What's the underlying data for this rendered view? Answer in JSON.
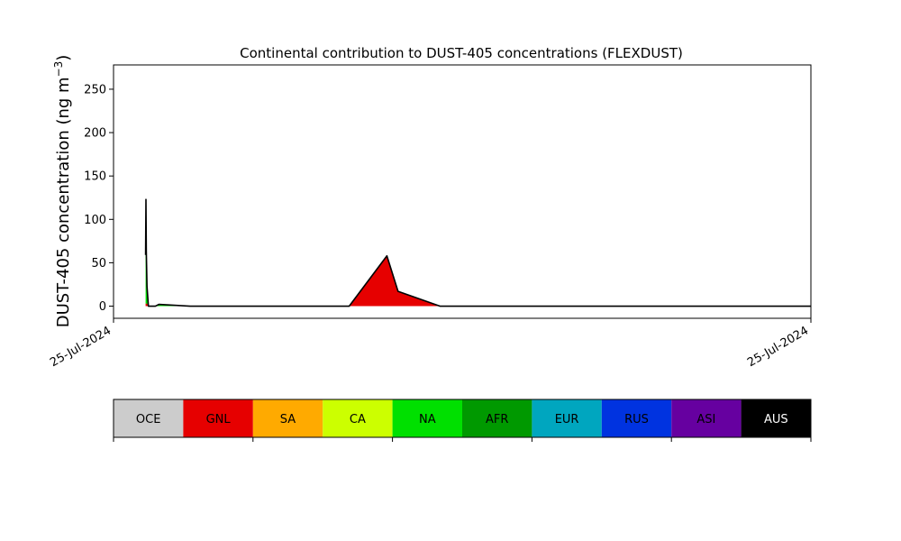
{
  "chart_data": {
    "type": "area",
    "title": "Continental contribution to DUST-405 concentrations (FLEXDUST)",
    "ylabel": "DUST-405 concentration (ng m",
    "ylabel_sup": "−3",
    "ylabel_close": ")",
    "ylim": [
      -14,
      278
    ],
    "yticks": [
      0,
      50,
      100,
      150,
      200,
      250
    ],
    "xlim": [
      0,
      1000
    ],
    "xtick_labels": [
      "25-Jul-2024",
      "25-Jul-2024"
    ],
    "grid": false,
    "x": [
      46,
      46.5,
      47,
      48,
      50,
      54,
      60,
      65,
      110,
      115,
      150,
      170,
      190,
      227,
      242,
      253,
      258,
      265,
      271,
      278,
      282,
      287,
      292,
      297,
      328,
      337,
      338,
      392,
      408,
      468,
      484,
      512,
      527,
      530,
      532,
      547,
      554,
      561,
      567,
      578,
      581,
      583,
      584,
      588,
      592,
      593,
      595,
      599,
      603,
      611,
      620,
      690,
      708,
      739,
      743,
      746,
      750,
      751,
      754,
      757,
      762,
      768,
      772,
      777,
      783,
      802,
      807,
      813,
      819,
      874,
      883,
      1000
    ],
    "series": [
      {
        "name": "OCE",
        "color": "#cccccc",
        "values": [
          0,
          0,
          0,
          0,
          0,
          0,
          0,
          0,
          0,
          0,
          0,
          0,
          0,
          0,
          0,
          0,
          0,
          0,
          0,
          0,
          0,
          0,
          0,
          0,
          0,
          0,
          0,
          0,
          0,
          0,
          0,
          0,
          0,
          0,
          0,
          0,
          0,
          0,
          0,
          0,
          0,
          0,
          0,
          0,
          0,
          0,
          0,
          0,
          0,
          0,
          0,
          0,
          0,
          0,
          0,
          0,
          0,
          0,
          0,
          0,
          0,
          0,
          0,
          0,
          0,
          0,
          0,
          0,
          0,
          0,
          0,
          0
        ]
      },
      {
        "name": "GNL",
        "color": "#e60000",
        "values": [
          3,
          3,
          3,
          3,
          0,
          0,
          0,
          0,
          0,
          0,
          0,
          0,
          0,
          0,
          0,
          0,
          0,
          0,
          0,
          0,
          0,
          0,
          0,
          0,
          0,
          0,
          0,
          58,
          17,
          0,
          0,
          0,
          0,
          0,
          0,
          0,
          0,
          0,
          0,
          0,
          0,
          0,
          0,
          0,
          0,
          0,
          0,
          0,
          0,
          0,
          0,
          0,
          0,
          0,
          0,
          0,
          0,
          0,
          0,
          0,
          0,
          0,
          0,
          0,
          0,
          0,
          0,
          0,
          0,
          0,
          0,
          0
        ]
      },
      {
        "name": "SA",
        "color": "#ffaa00",
        "values": [
          0,
          0,
          0,
          0,
          0,
          0,
          0,
          0,
          0,
          0,
          0,
          0,
          0,
          0,
          0,
          0,
          0,
          0,
          0,
          0,
          0,
          0,
          0,
          0,
          0,
          0,
          0,
          0,
          0,
          0,
          0,
          0,
          0,
          0,
          0,
          0,
          0,
          0,
          0,
          0,
          0,
          0,
          0,
          0,
          0,
          0,
          0,
          0,
          0,
          0,
          0,
          0,
          0,
          0,
          0,
          0,
          0,
          0,
          0,
          0,
          0,
          0,
          0,
          0,
          0,
          0,
          0,
          0,
          0,
          0,
          0,
          0
        ]
      },
      {
        "name": "CA",
        "color": "#ccff00",
        "values": [
          0,
          0,
          0,
          0,
          0,
          0,
          0,
          0,
          0,
          0,
          0,
          0,
          0,
          0,
          0,
          0,
          0,
          0,
          0,
          0,
          0,
          0,
          0,
          0,
          0,
          0,
          0,
          0,
          0,
          0,
          0,
          0,
          0,
          0,
          0,
          0,
          0,
          0,
          0,
          0,
          0,
          0,
          0,
          0,
          0,
          0,
          0,
          0,
          0,
          0,
          0,
          0,
          0,
          0,
          0,
          0,
          0,
          0,
          0,
          0,
          0,
          0,
          0,
          0,
          0,
          0,
          0,
          0,
          0,
          0,
          0,
          0
        ]
      },
      {
        "name": "NA",
        "color": "#00e000",
        "values": [
          56,
          120,
          60,
          20,
          0,
          0,
          0,
          2,
          0,
          0,
          0,
          0,
          0,
          0,
          0,
          0,
          0,
          0,
          0,
          0,
          0,
          0,
          0,
          0,
          0,
          0,
          0,
          0,
          0,
          0,
          0,
          0,
          0,
          0,
          0,
          0,
          0,
          0,
          0,
          0,
          0,
          0,
          0,
          0,
          0,
          0,
          0,
          0,
          0,
          0,
          0,
          0,
          0,
          0,
          0,
          0,
          0,
          0,
          0,
          0,
          0,
          0,
          0,
          0,
          0,
          0,
          0,
          0,
          0,
          0,
          0,
          0
        ]
      },
      {
        "name": "AFR",
        "color": "#009900",
        "values": [
          0,
          0,
          0,
          0,
          0,
          0,
          0,
          0,
          0,
          0,
          0,
          0,
          0,
          0,
          0,
          0,
          0,
          0,
          0,
          0,
          0,
          0,
          0,
          0,
          0,
          0,
          0,
          0,
          0,
          0,
          0,
          0,
          0,
          0,
          0,
          0,
          0,
          0,
          0,
          0,
          0,
          0,
          0,
          0,
          0,
          0,
          0,
          0,
          0,
          0,
          0,
          0,
          0,
          0,
          0,
          0,
          0,
          0,
          0,
          0,
          0,
          0,
          0,
          0,
          0,
          0,
          0,
          0,
          0,
          0,
          0,
          0
        ]
      },
      {
        "name": "EUR",
        "color": "#00a6bf",
        "values": [
          0,
          0,
          0,
          0,
          0,
          0,
          0,
          0,
          0,
          0,
          0,
          0,
          0,
          0,
          0,
          0,
          0,
          0,
          0,
          0,
          0,
          0,
          0,
          0,
          0,
          0,
          0,
          0,
          0,
          0,
          0,
          0,
          0,
          0,
          0,
          0,
          0,
          0,
          0,
          0,
          0,
          0,
          0,
          0,
          0,
          0,
          0,
          0,
          0,
          0,
          0,
          0,
          0,
          0,
          0,
          0,
          0,
          0,
          0,
          0,
          0,
          0,
          0,
          0,
          0,
          0,
          0,
          0,
          0,
          0,
          0,
          0
        ]
      },
      {
        "name": "RUS",
        "color": "#0033e0",
        "values": [
          0,
          0,
          0,
          0,
          0,
          0,
          0,
          0,
          0,
          0,
          0,
          0,
          0,
          0,
          0,
          0,
          0,
          0,
          0,
          0,
          0,
          0,
          0,
          0,
          0,
          0,
          0,
          0,
          0,
          0,
          0,
          0,
          0,
          0,
          0,
          0,
          0,
          0,
          0,
          0,
          0,
          0,
          0,
          0,
          0,
          0,
          0,
          0,
          0,
          0,
          0,
          0,
          0,
          0,
          0,
          0,
          0,
          0,
          0,
          0,
          0,
          0,
          0,
          0,
          0,
          0,
          0,
          0,
          0,
          0,
          0,
          0
        ]
      },
      {
        "name": "ASI",
        "color": "#6600a0",
        "values": [
          0,
          0,
          0,
          0,
          0,
          0,
          0,
          0,
          0,
          0,
          0,
          0,
          0,
          0,
          0,
          0,
          0,
          0,
          0,
          0,
          0,
          0,
          0,
          0,
          0,
          0,
          0,
          0,
          0,
          0,
          0,
          0,
          0,
          0,
          0,
          0,
          0,
          0,
          0,
          0,
          0,
          0,
          0,
          0,
          0,
          0,
          0,
          0,
          0,
          0,
          0,
          0,
          0,
          0,
          0,
          0,
          0,
          0,
          0,
          0,
          0,
          0,
          0,
          0,
          0,
          0,
          0,
          0,
          0,
          0,
          0,
          0
        ]
      },
      {
        "name": "AUS",
        "color": "#000000",
        "values": [
          0,
          0,
          0,
          0,
          0,
          0,
          0,
          0,
          0,
          0,
          0,
          0,
          0,
          0,
          0,
          0,
          0,
          0,
          0,
          0,
          0,
          0,
          0,
          0,
          0,
          0,
          0,
          0,
          0,
          0,
          0,
          0,
          0,
          0,
          0,
          0,
          0,
          0,
          0,
          0,
          0,
          0,
          0,
          0,
          0,
          0,
          0,
          0,
          0,
          0,
          0,
          0,
          0,
          0,
          0,
          0,
          0,
          0,
          0,
          0,
          0,
          0,
          0,
          0,
          0,
          0,
          0,
          0,
          0,
          0,
          0,
          0
        ]
      }
    ],
    "legend": {
      "placement": "bottom",
      "items": [
        "OCE",
        "GNL",
        "SA",
        "CA",
        "NA",
        "AFR",
        "EUR",
        "RUS",
        "ASI",
        "AUS"
      ],
      "colors": [
        "#cccccc",
        "#e60000",
        "#ffaa00",
        "#ccff00",
        "#00e000",
        "#009900",
        "#00a6bf",
        "#0033e0",
        "#6600a0",
        "#000000"
      ],
      "label_colors": [
        "#000000",
        "#000000",
        "#000000",
        "#000000",
        "#000000",
        "#000000",
        "#000000",
        "#000000",
        "#000000",
        "#ffffff"
      ]
    }
  }
}
